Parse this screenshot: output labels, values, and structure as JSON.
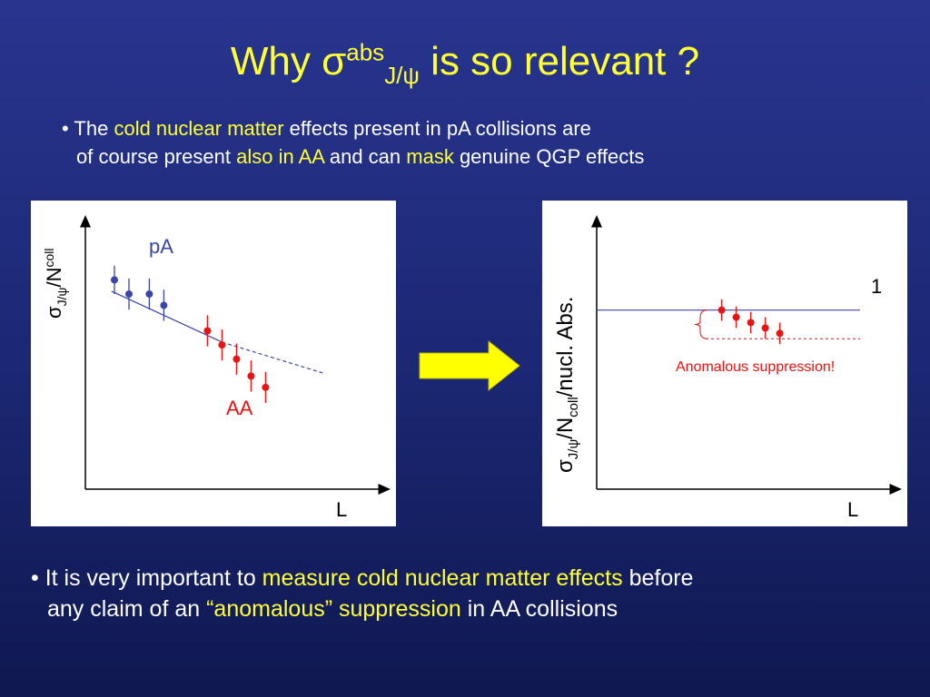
{
  "title": {
    "prefix": "Why ",
    "sigma": "σ",
    "sup": "abs",
    "sub": "J/ψ",
    "suffix": " is so relevant ?"
  },
  "bullet1": {
    "dot": "• ",
    "p1": "The ",
    "h1": "cold nuclear matter",
    "p2": " effects present in pA collisions are",
    "p3": "of course present ",
    "h2": "also in AA",
    "p4": " and can ",
    "h3": "mask",
    "p5": " genuine QGP effects"
  },
  "bullet2": {
    "dot": "• ",
    "p1": "It is very important to ",
    "h1": "measure cold nuclear matter effects",
    "p2": " before",
    "p3": "any claim of an ",
    "h2": "“anomalous” suppression",
    "p4": " in AA collisions"
  },
  "colors": {
    "background": "#1f2b7b",
    "highlight": "#ffff33",
    "pA": "#3b45a8",
    "AA": "#ee1111",
    "arrow": "#ffff00"
  },
  "chart_data": [
    {
      "type": "scatter",
      "xlabel": "L",
      "ylabel": "σJ/ψ/Ncoll",
      "ylabel_parts": {
        "sigma": "σ",
        "sub": "J/ψ",
        "mid": "/N",
        "sub2": "coll"
      },
      "series": [
        {
          "name": "pA",
          "color": "#3b45a8",
          "x": [
            1.0,
            1.5,
            2.2,
            2.7
          ],
          "y": [
            7.4,
            6.9,
            6.9,
            6.5
          ],
          "err": [
            0.5,
            0.55,
            0.55,
            0.55
          ]
        },
        {
          "name": "AA",
          "color": "#ee1111",
          "x": [
            4.2,
            4.7,
            5.2,
            5.7,
            6.2
          ],
          "y": [
            5.6,
            5.1,
            4.6,
            4.0,
            3.6
          ],
          "err": [
            0.55,
            0.55,
            0.55,
            0.55,
            0.55
          ]
        }
      ],
      "fit_line": {
        "x": [
          0.9,
          4.7
        ],
        "y": [
          7.0,
          5.2
        ]
      },
      "fit_extension": {
        "x": [
          4.7,
          8.2
        ],
        "y": [
          5.2,
          4.1
        ]
      },
      "xlim": [
        0,
        10
      ],
      "ylim": [
        0,
        9.5
      ]
    },
    {
      "type": "scatter",
      "xlabel": "L",
      "ylabel": "σJ/ψ/Ncoll/nucl. Abs.",
      "ylabel_parts": {
        "sigma": "σ",
        "sub": "J/ψ",
        "mid": "/N",
        "sub2": "coll",
        "end": "/nucl. Abs."
      },
      "reference_value": 1,
      "reference_label": "1",
      "annotation": "Anomalous suppression!",
      "series": [
        {
          "name": "AA",
          "color": "#ee1111",
          "x": [
            4.3,
            4.8,
            5.3,
            5.8,
            6.3
          ],
          "y": [
            1.0,
            0.96,
            0.93,
            0.9,
            0.87
          ],
          "err": [
            0.06,
            0.06,
            0.06,
            0.06,
            0.06
          ]
        }
      ],
      "suppressed_level": 0.84,
      "xlim": [
        0,
        10
      ],
      "ylim": [
        0,
        1.5
      ]
    }
  ]
}
